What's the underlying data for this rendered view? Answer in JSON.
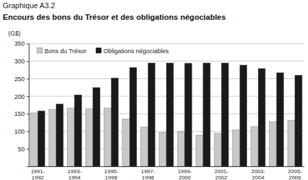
{
  "chart_data": {
    "type": "bar",
    "subtitle": "Graphique A3.2",
    "title": "Encours des bons du Trésor et des obligations négociables",
    "ylabel": "(G$)",
    "categories": [
      "1991-1992",
      null,
      "1993-1994",
      null,
      "1995-1996",
      null,
      "1997-1998",
      null,
      "1999-2000",
      null,
      "2001-2002",
      null,
      "2003-2004",
      null,
      "2005-2006"
    ],
    "series": [
      {
        "name": "Bons du Trésor",
        "color": "#c8c8c8",
        "values": [
          152,
          162,
          166,
          164,
          166,
          135,
          112,
          97,
          99,
          89,
          94,
          104,
          113,
          127,
          131
        ]
      },
      {
        "name": "Obligations négociables",
        "color": "#1a1a1a",
        "values": [
          158,
          178,
          204,
          225,
          252,
          282,
          295,
          295,
          294,
          295,
          295,
          289,
          279,
          267,
          260
        ]
      }
    ],
    "ylim": [
      0,
      350
    ],
    "yticks": [
      50,
      100,
      150,
      200,
      250,
      300,
      350
    ],
    "grid": true,
    "legend": "top"
  }
}
